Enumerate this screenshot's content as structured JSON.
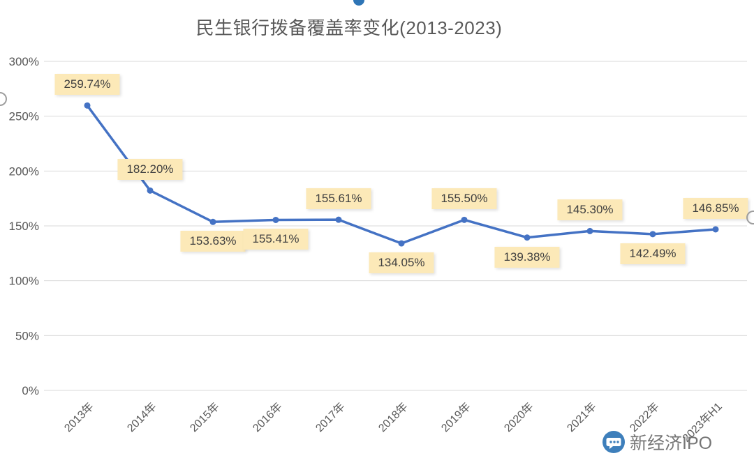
{
  "title": "民生银行拨备覆盖率变化(2013-2023)",
  "watermark": {
    "text": "新经济IPO"
  },
  "chart_data": {
    "type": "line",
    "title": "民生银行拨备覆盖率变化(2013-2023)",
    "categories": [
      "2013年",
      "2014年",
      "2015年",
      "2016年",
      "2017年",
      "2018年",
      "2019年",
      "2020年",
      "2021年",
      "2022年",
      "2023年H1"
    ],
    "values": [
      259.74,
      182.2,
      153.63,
      155.41,
      155.61,
      134.05,
      155.5,
      139.38,
      145.3,
      142.49,
      146.85
    ],
    "data_labels": [
      "259.74%",
      "182.20%",
      "153.63%",
      "155.41%",
      "155.61%",
      "134.05%",
      "155.50%",
      "139.38%",
      "145.30%",
      "142.49%",
      "146.85%"
    ],
    "label_placement": [
      "above",
      "above",
      "below",
      "below",
      "above",
      "below",
      "above",
      "below",
      "above",
      "below",
      "above"
    ],
    "ylim": [
      0,
      300
    ],
    "ytick_step": 50,
    "ytick_labels": [
      "0%",
      "50%",
      "100%",
      "150%",
      "200%",
      "250%",
      "300%"
    ],
    "grid": true,
    "legend": "none",
    "line_color": "#4472C4",
    "label_bg": "#FCE9B8",
    "grid_color": "#D9D9D9",
    "axis_text_color": "#595959"
  }
}
